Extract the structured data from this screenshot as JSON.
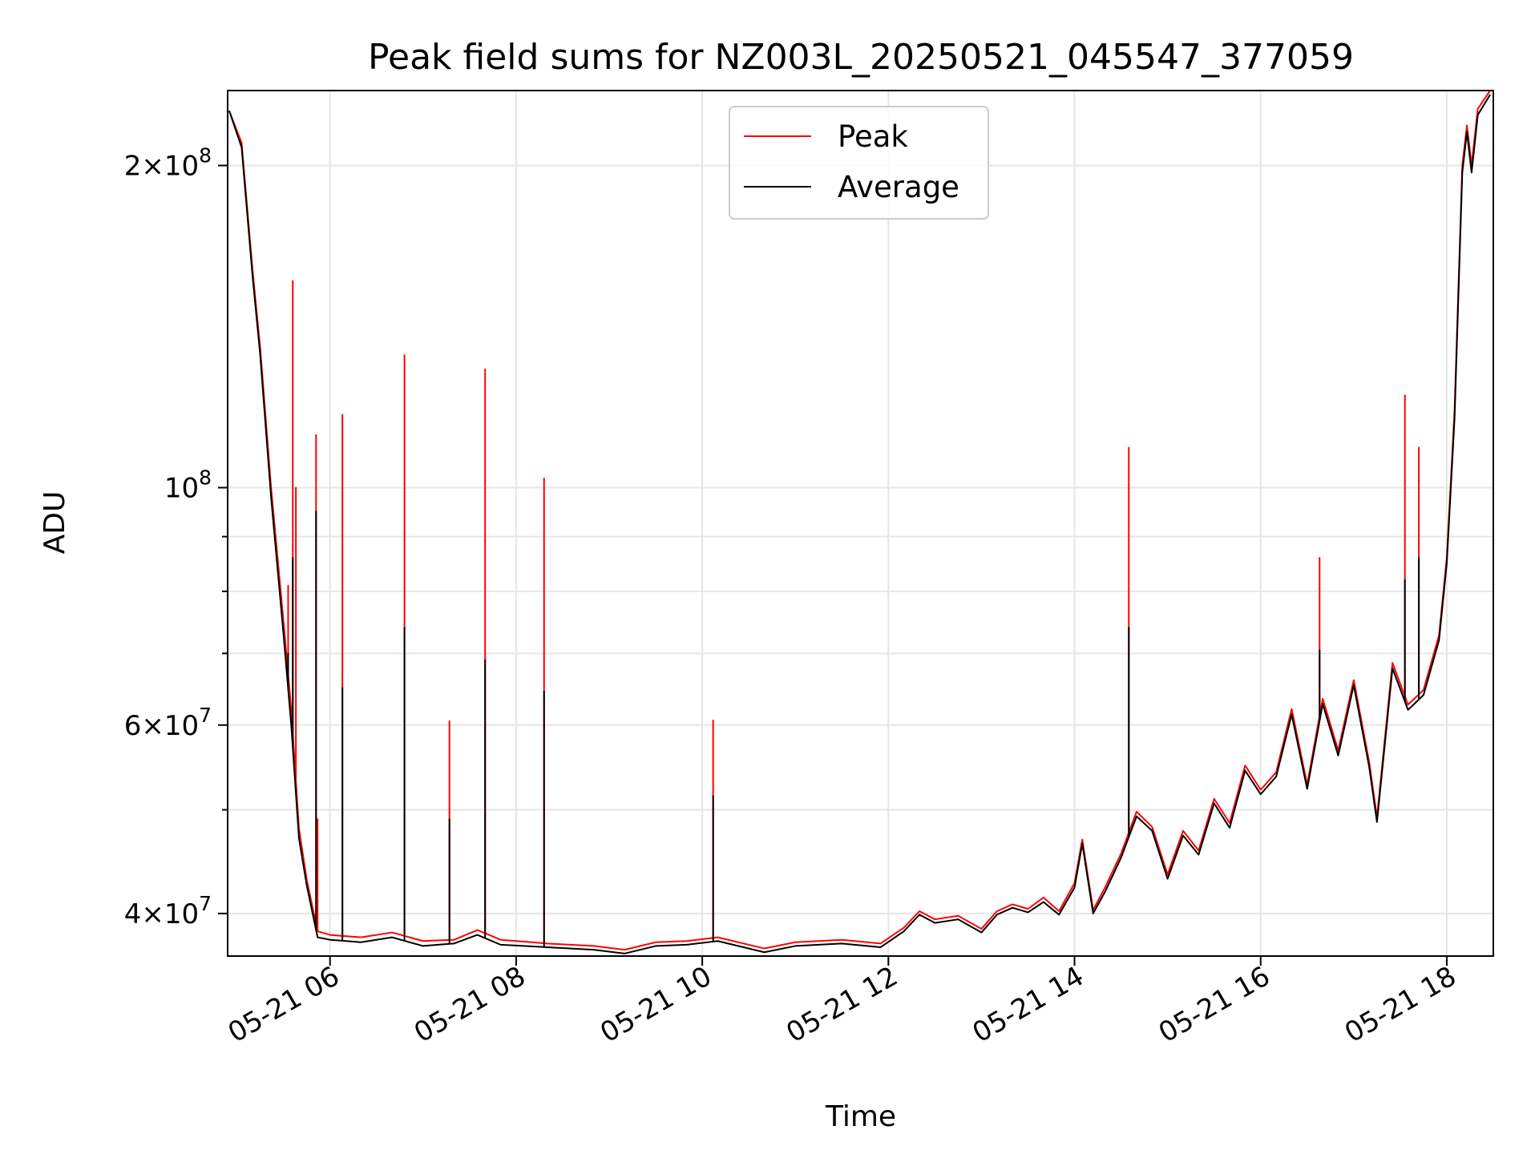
{
  "chart_data": {
    "type": "line",
    "title": "Peak field sums for NZ003L_20250521_045547_377059",
    "xlabel": "Time",
    "ylabel": "ADU",
    "yscale": "log",
    "xlim": [
      "2025-05-21 04:54",
      "2025-05-21 18:30"
    ],
    "ylim": [
      36500000,
      235000000
    ],
    "grid": true,
    "legend": {
      "location": "upper center",
      "entries": [
        "Peak",
        "Average"
      ]
    },
    "x_ticks": [
      {
        "value": "2025-05-21 06:00",
        "label": "05-21 06"
      },
      {
        "value": "2025-05-21 08:00",
        "label": "05-21 08"
      },
      {
        "value": "2025-05-21 10:00",
        "label": "05-21 10"
      },
      {
        "value": "2025-05-21 12:00",
        "label": "05-21 12"
      },
      {
        "value": "2025-05-21 14:00",
        "label": "05-21 14"
      },
      {
        "value": "2025-05-21 16:00",
        "label": "05-21 16"
      },
      {
        "value": "2025-05-21 18:00",
        "label": "05-21 18"
      }
    ],
    "y_major_ticks": [
      {
        "value": 40000000,
        "mantissa": "4",
        "exponent": "7"
      },
      {
        "value": 60000000,
        "mantissa": "6",
        "exponent": "7"
      },
      {
        "value": 100000000,
        "mantissa": "",
        "exponent": "8"
      },
      {
        "value": 200000000,
        "mantissa": "2",
        "exponent": "8"
      }
    ],
    "y_minor_ticks": [
      50000000,
      70000000,
      80000000,
      90000000
    ],
    "series": [
      {
        "name": "Peak",
        "color": "#ff0000",
        "points": [
          [
            "2025-05-21 04:55",
            225000000
          ],
          [
            "2025-05-21 05:03",
            210000000
          ],
          [
            "2025-05-21 05:10",
            160000000
          ],
          [
            "2025-05-21 05:15",
            135000000
          ],
          [
            "2025-05-21 05:22",
            100000000
          ],
          [
            "2025-05-21 05:30",
            75000000
          ],
          [
            "2025-05-21 05:35",
            62000000
          ],
          [
            "2025-05-21 05:40",
            48000000
          ],
          [
            "2025-05-21 05:45",
            43000000
          ],
          [
            "2025-05-21 05:52",
            38500000
          ],
          [
            "2025-05-21 06:00",
            38200000
          ],
          [
            "2025-05-21 06:20",
            38000000
          ],
          [
            "2025-05-21 06:40",
            38400000
          ],
          [
            "2025-05-21 07:00",
            37700000
          ],
          [
            "2025-05-21 07:20",
            37800000
          ],
          [
            "2025-05-21 07:35",
            38600000
          ],
          [
            "2025-05-21 07:50",
            37800000
          ],
          [
            "2025-05-21 08:20",
            37500000
          ],
          [
            "2025-05-21 08:50",
            37300000
          ],
          [
            "2025-05-21 09:10",
            37000000
          ],
          [
            "2025-05-21 09:30",
            37600000
          ],
          [
            "2025-05-21 09:50",
            37700000
          ],
          [
            "2025-05-21 10:10",
            38000000
          ],
          [
            "2025-05-21 10:40",
            37100000
          ],
          [
            "2025-05-21 11:00",
            37600000
          ],
          [
            "2025-05-21 11:30",
            37800000
          ],
          [
            "2025-05-21 11:55",
            37500000
          ],
          [
            "2025-05-21 12:10",
            38800000
          ],
          [
            "2025-05-21 12:20",
            40200000
          ],
          [
            "2025-05-21 12:30",
            39500000
          ],
          [
            "2025-05-21 12:45",
            39800000
          ],
          [
            "2025-05-21 13:00",
            38700000
          ],
          [
            "2025-05-21 13:10",
            40200000
          ],
          [
            "2025-05-21 13:20",
            40800000
          ],
          [
            "2025-05-21 13:30",
            40400000
          ],
          [
            "2025-05-21 13:40",
            41400000
          ],
          [
            "2025-05-21 13:50",
            40200000
          ],
          [
            "2025-05-21 14:00",
            42700000
          ],
          [
            "2025-05-21 14:05",
            46900000
          ],
          [
            "2025-05-21 14:12",
            40300000
          ],
          [
            "2025-05-21 14:20",
            42400000
          ],
          [
            "2025-05-21 14:30",
            45500000
          ],
          [
            "2025-05-21 14:40",
            49800000
          ],
          [
            "2025-05-21 14:50",
            48200000
          ],
          [
            "2025-05-21 15:00",
            43500000
          ],
          [
            "2025-05-21 15:10",
            47800000
          ],
          [
            "2025-05-21 15:20",
            45800000
          ],
          [
            "2025-05-21 15:30",
            51200000
          ],
          [
            "2025-05-21 15:40",
            48600000
          ],
          [
            "2025-05-21 15:50",
            55000000
          ],
          [
            "2025-05-21 16:00",
            52200000
          ],
          [
            "2025-05-21 16:10",
            54200000
          ],
          [
            "2025-05-21 16:20",
            62100000
          ],
          [
            "2025-05-21 16:30",
            52800000
          ],
          [
            "2025-05-21 16:40",
            63500000
          ],
          [
            "2025-05-21 16:50",
            56800000
          ],
          [
            "2025-05-21 17:00",
            66100000
          ],
          [
            "2025-05-21 17:10",
            55400000
          ],
          [
            "2025-05-21 17:15",
            49200000
          ],
          [
            "2025-05-21 17:25",
            68600000
          ],
          [
            "2025-05-21 17:35",
            62700000
          ],
          [
            "2025-05-21 17:45",
            64700000
          ],
          [
            "2025-05-21 17:55",
            72800000
          ],
          [
            "2025-05-21 18:00",
            86000000
          ],
          [
            "2025-05-21 18:05",
            118000000
          ],
          [
            "2025-05-21 18:10",
            200000000
          ],
          [
            "2025-05-21 18:13",
            218000000
          ],
          [
            "2025-05-21 18:16",
            200000000
          ],
          [
            "2025-05-21 18:20",
            226000000
          ],
          [
            "2025-05-21 18:28",
            235000000
          ]
        ],
        "spikes": [
          [
            "2025-05-21 05:33",
            81000000
          ],
          [
            "2025-05-21 05:36",
            156000000
          ],
          [
            "2025-05-21 05:38",
            100000000
          ],
          [
            "2025-05-21 05:51",
            112000000
          ],
          [
            "2025-05-21 05:52",
            49000000
          ],
          [
            "2025-05-21 06:08",
            117000000
          ],
          [
            "2025-05-21 06:48",
            133000000
          ],
          [
            "2025-05-21 07:17",
            60500000
          ],
          [
            "2025-05-21 07:40",
            129000000
          ],
          [
            "2025-05-21 08:18",
            102000000
          ],
          [
            "2025-05-21 10:07",
            60600000
          ],
          [
            "2025-05-21 14:35",
            109000000
          ],
          [
            "2025-05-21 16:38",
            86000000
          ],
          [
            "2025-05-21 17:33",
            122000000
          ],
          [
            "2025-05-21 17:42",
            109000000
          ]
        ]
      },
      {
        "name": "Average",
        "color": "#000000",
        "points": [
          [
            "2025-05-21 04:55",
            225000000
          ],
          [
            "2025-05-21 05:03",
            208000000
          ],
          [
            "2025-05-21 05:10",
            158000000
          ],
          [
            "2025-05-21 05:15",
            133000000
          ],
          [
            "2025-05-21 05:22",
            98000000
          ],
          [
            "2025-05-21 05:30",
            73000000
          ],
          [
            "2025-05-21 05:35",
            60000000
          ],
          [
            "2025-05-21 05:40",
            47000000
          ],
          [
            "2025-05-21 05:45",
            42500000
          ],
          [
            "2025-05-21 05:52",
            38000000
          ],
          [
            "2025-05-21 06:00",
            37800000
          ],
          [
            "2025-05-21 06:20",
            37600000
          ],
          [
            "2025-05-21 06:40",
            38000000
          ],
          [
            "2025-05-21 07:00",
            37300000
          ],
          [
            "2025-05-21 07:20",
            37500000
          ],
          [
            "2025-05-21 07:35",
            38200000
          ],
          [
            "2025-05-21 07:50",
            37400000
          ],
          [
            "2025-05-21 08:20",
            37200000
          ],
          [
            "2025-05-21 08:50",
            37000000
          ],
          [
            "2025-05-21 09:10",
            36700000
          ],
          [
            "2025-05-21 09:30",
            37300000
          ],
          [
            "2025-05-21 09:50",
            37400000
          ],
          [
            "2025-05-21 10:10",
            37700000
          ],
          [
            "2025-05-21 10:40",
            36800000
          ],
          [
            "2025-05-21 11:00",
            37300000
          ],
          [
            "2025-05-21 11:30",
            37500000
          ],
          [
            "2025-05-21 11:55",
            37200000
          ],
          [
            "2025-05-21 12:10",
            38500000
          ],
          [
            "2025-05-21 12:20",
            39900000
          ],
          [
            "2025-05-21 12:30",
            39200000
          ],
          [
            "2025-05-21 12:45",
            39500000
          ],
          [
            "2025-05-21 13:00",
            38400000
          ],
          [
            "2025-05-21 13:10",
            39900000
          ],
          [
            "2025-05-21 13:20",
            40500000
          ],
          [
            "2025-05-21 13:30",
            40100000
          ],
          [
            "2025-05-21 13:40",
            41000000
          ],
          [
            "2025-05-21 13:50",
            39900000
          ],
          [
            "2025-05-21 14:00",
            42300000
          ],
          [
            "2025-05-21 14:05",
            46500000
          ],
          [
            "2025-05-21 14:12",
            40000000
          ],
          [
            "2025-05-21 14:20",
            42000000
          ],
          [
            "2025-05-21 14:30",
            45100000
          ],
          [
            "2025-05-21 14:40",
            49300000
          ],
          [
            "2025-05-21 14:50",
            47800000
          ],
          [
            "2025-05-21 15:00",
            43100000
          ],
          [
            "2025-05-21 15:10",
            47300000
          ],
          [
            "2025-05-21 15:20",
            45400000
          ],
          [
            "2025-05-21 15:30",
            50700000
          ],
          [
            "2025-05-21 15:40",
            48100000
          ],
          [
            "2025-05-21 15:50",
            54400000
          ],
          [
            "2025-05-21 16:00",
            51700000
          ],
          [
            "2025-05-21 16:10",
            53700000
          ],
          [
            "2025-05-21 16:20",
            61400000
          ],
          [
            "2025-05-21 16:30",
            52300000
          ],
          [
            "2025-05-21 16:40",
            62800000
          ],
          [
            "2025-05-21 16:50",
            56200000
          ],
          [
            "2025-05-21 17:00",
            65400000
          ],
          [
            "2025-05-21 17:10",
            54800000
          ],
          [
            "2025-05-21 17:15",
            48700000
          ],
          [
            "2025-05-21 17:25",
            67800000
          ],
          [
            "2025-05-21 17:35",
            62000000
          ],
          [
            "2025-05-21 17:45",
            64000000
          ],
          [
            "2025-05-21 17:55",
            72000000
          ],
          [
            "2025-05-21 18:00",
            85000000
          ],
          [
            "2025-05-21 18:05",
            116000000
          ],
          [
            "2025-05-21 18:10",
            197000000
          ],
          [
            "2025-05-21 18:13",
            215000000
          ],
          [
            "2025-05-21 18:16",
            197000000
          ],
          [
            "2025-05-21 18:20",
            223000000
          ],
          [
            "2025-05-21 18:28",
            233000000
          ]
        ],
        "spikes": [
          [
            "2025-05-21 05:33",
            70000000
          ],
          [
            "2025-05-21 05:36",
            86000000
          ],
          [
            "2025-05-21 05:51",
            95000000
          ],
          [
            "2025-05-21 06:08",
            65000000
          ],
          [
            "2025-05-21 06:48",
            74000000
          ],
          [
            "2025-05-21 07:17",
            49000000
          ],
          [
            "2025-05-21 07:40",
            69000000
          ],
          [
            "2025-05-21 08:18",
            64500000
          ],
          [
            "2025-05-21 10:07",
            51500000
          ],
          [
            "2025-05-21 14:35",
            74000000
          ],
          [
            "2025-05-21 16:38",
            70500000
          ],
          [
            "2025-05-21 17:33",
            82000000
          ],
          [
            "2025-05-21 17:42",
            86000000
          ]
        ]
      }
    ]
  }
}
